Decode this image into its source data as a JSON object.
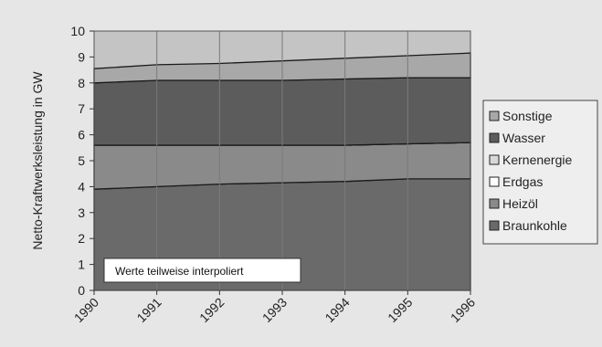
{
  "chart_data": {
    "type": "area",
    "stacked": true,
    "title": "",
    "xlabel": "",
    "ylabel": "Netto-Kraftwerksleistung in GW",
    "x": [
      "1990",
      "1991",
      "1992",
      "1993",
      "1994",
      "1995",
      "1996"
    ],
    "ylim": [
      0,
      10
    ],
    "yticks": [
      "0",
      "1",
      "2",
      "3",
      "4",
      "5",
      "6",
      "7",
      "8",
      "9",
      "10"
    ],
    "grid": true,
    "legend_position": "right",
    "annotation": "Werte teilweise interpoliert",
    "series": [
      {
        "name": "Braunkohle",
        "values": [
          3.9,
          4.0,
          4.1,
          4.15,
          4.2,
          4.3,
          4.3
        ],
        "color": "#6a6a6a"
      },
      {
        "name": "Heizöl",
        "values": [
          1.7,
          1.6,
          1.5,
          1.45,
          1.4,
          1.35,
          1.4
        ],
        "color": "#8a8a8a"
      },
      {
        "name": "Erdgas",
        "values": [
          0.0,
          0.0,
          0.0,
          0.0,
          0.0,
          0.0,
          0.0
        ],
        "color": "#ffffff"
      },
      {
        "name": "Kernenergie",
        "values": [
          0.0,
          0.0,
          0.0,
          0.0,
          0.0,
          0.0,
          0.0
        ],
        "color": "#d8d8d8"
      },
      {
        "name": "Wasser",
        "values": [
          2.4,
          2.5,
          2.5,
          2.5,
          2.55,
          2.55,
          2.5
        ],
        "color": "#5c5c5c"
      },
      {
        "name": "Sonstige",
        "values": [
          0.55,
          0.6,
          0.65,
          0.75,
          0.8,
          0.85,
          0.95
        ],
        "color": "#a8a8a8"
      }
    ],
    "top_band_color": "#c4c4c4"
  }
}
